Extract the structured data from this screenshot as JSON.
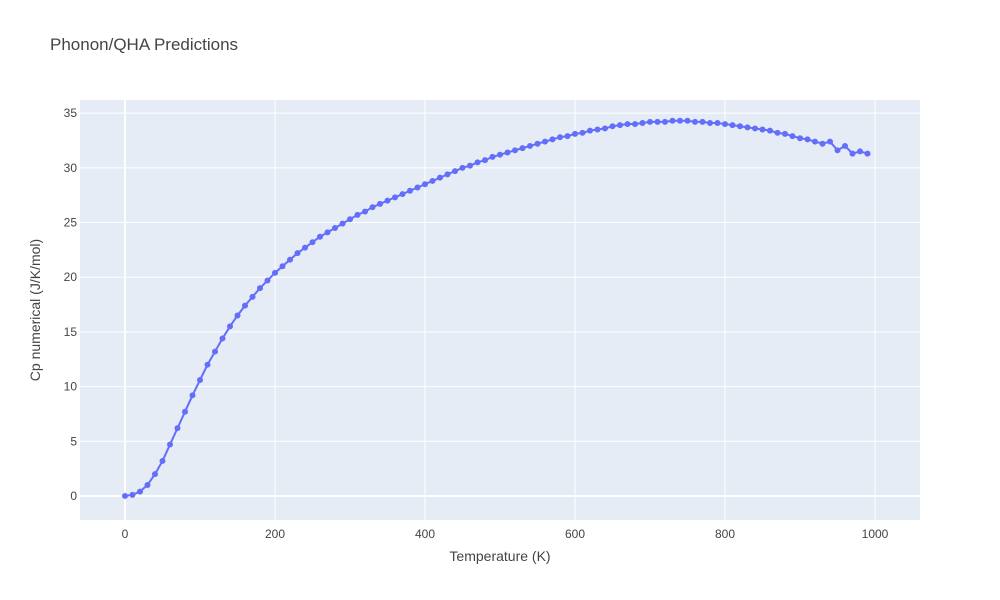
{
  "chart_data": {
    "type": "line",
    "title": "Phonon/QHA Predictions",
    "xlabel": "Temperature (K)",
    "ylabel": "Cp numerical (J/K/mol)",
    "xlim": [
      -60,
      1060
    ],
    "ylim": [
      -2.2,
      36.2
    ],
    "x_ticks": [
      0,
      200,
      400,
      600,
      800,
      1000
    ],
    "y_ticks": [
      0,
      5,
      10,
      15,
      20,
      25,
      30,
      35
    ],
    "grid": true,
    "legend": "none",
    "colors": {
      "plot_bg": "#e5ecf6",
      "grid": "#ffffff",
      "series": "#636efa",
      "text": "#444444"
    },
    "series": [
      {
        "markers": true,
        "x": [
          0,
          10,
          20,
          30,
          40,
          50,
          60,
          70,
          80,
          90,
          100,
          110,
          120,
          130,
          140,
          150,
          160,
          170,
          180,
          190,
          200,
          210,
          220,
          230,
          240,
          250,
          260,
          270,
          280,
          290,
          300,
          310,
          320,
          330,
          340,
          350,
          360,
          370,
          380,
          390,
          400,
          410,
          420,
          430,
          440,
          450,
          460,
          470,
          480,
          490,
          500,
          510,
          520,
          530,
          540,
          550,
          560,
          570,
          580,
          590,
          600,
          610,
          620,
          630,
          640,
          650,
          660,
          670,
          680,
          690,
          700,
          710,
          720,
          730,
          740,
          750,
          760,
          770,
          780,
          790,
          800,
          810,
          820,
          830,
          840,
          850,
          860,
          870,
          880,
          890,
          900,
          910,
          920,
          930,
          940,
          950,
          960,
          970,
          980,
          990
        ],
        "y": [
          0.0,
          0.1,
          0.4,
          1.0,
          2.0,
          3.2,
          4.7,
          6.2,
          7.7,
          9.2,
          10.6,
          12.0,
          13.2,
          14.4,
          15.5,
          16.5,
          17.4,
          18.2,
          19.0,
          19.7,
          20.4,
          21.0,
          21.6,
          22.2,
          22.7,
          23.2,
          23.7,
          24.1,
          24.5,
          24.9,
          25.3,
          25.7,
          26.0,
          26.4,
          26.7,
          27.0,
          27.3,
          27.6,
          27.9,
          28.2,
          28.5,
          28.8,
          29.1,
          29.4,
          29.7,
          30.0,
          30.2,
          30.5,
          30.7,
          31.0,
          31.2,
          31.4,
          31.6,
          31.8,
          32.0,
          32.2,
          32.4,
          32.6,
          32.8,
          32.9,
          33.1,
          33.2,
          33.4,
          33.5,
          33.6,
          33.8,
          33.9,
          34.0,
          34.0,
          34.1,
          34.2,
          34.2,
          34.2,
          34.3,
          34.3,
          34.3,
          34.2,
          34.2,
          34.1,
          34.1,
          34.0,
          33.9,
          33.8,
          33.7,
          33.6,
          33.5,
          33.4,
          33.2,
          33.1,
          32.9,
          32.7,
          32.6,
          32.4,
          32.2,
          32.4,
          31.6,
          32.0,
          31.3,
          31.5,
          31.3
        ]
      }
    ]
  }
}
